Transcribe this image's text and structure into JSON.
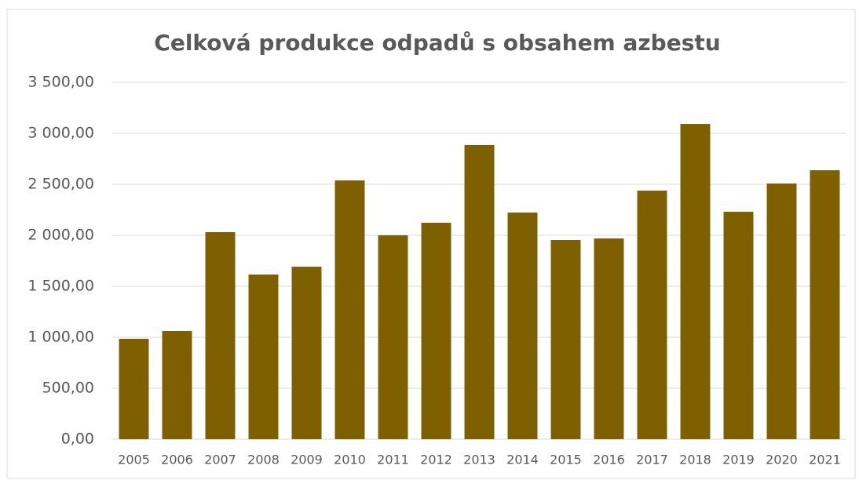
{
  "chart_data": {
    "type": "bar",
    "title": "Celková produkce odpadů s obsahem azbestu",
    "categories": [
      "2005",
      "2006",
      "2007",
      "2008",
      "2009",
      "2010",
      "2011",
      "2012",
      "2013",
      "2014",
      "2015",
      "2016",
      "2017",
      "2018",
      "2019",
      "2020",
      "2021"
    ],
    "values": [
      985,
      1062,
      2031,
      1615,
      1692,
      2538,
      2000,
      2123,
      2885,
      2223,
      1954,
      1969,
      2438,
      3092,
      2231,
      2508,
      2638
    ],
    "color": "#7f6000",
    "ylim": [
      0,
      3500
    ],
    "yticks": [
      {
        "value": 0,
        "label": "0,00"
      },
      {
        "value": 500,
        "label": "500,00"
      },
      {
        "value": 1000,
        "label": "1 000,00"
      },
      {
        "value": 1500,
        "label": "1 500,00"
      },
      {
        "value": 2000,
        "label": "2 000,00"
      },
      {
        "value": 2500,
        "label": "2 500,00"
      },
      {
        "value": 3000,
        "label": "3 000,00"
      },
      {
        "value": 3500,
        "label": "3 500,00"
      }
    ],
    "grid": true
  }
}
